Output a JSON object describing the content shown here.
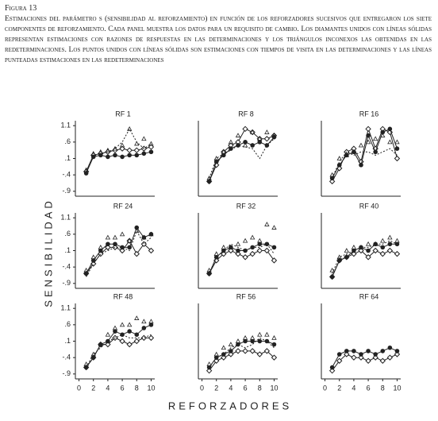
{
  "caption": {
    "label": "Figura 13",
    "text": "Estimaciones del parámetro s (sensibilidad al reforzamiento) en función de los reforzadores sucesivos que entregaron los siete componentes de reforzamiento. Cada panel muestra los datos para un requisito de cambio. Los diamantes unidos con líneas sólidas representan estimaciones con razones de respuestas en las determinaciones y los triángulos inconexos las obtenidas en las redeterminaciones. Los puntos unidos con líneas sólidas son estimaciones con tiempos de visita en las determinaciones y las líneas punteadas estimaciones en las redeterminaciones"
  },
  "xlabel": "REFORZADORES",
  "ylabel": "SENSIBILIDAD",
  "chart_data": [
    {
      "type": "line",
      "title": "RF 1",
      "x": [
        1,
        2,
        3,
        4,
        5,
        6,
        7,
        8,
        9,
        10
      ],
      "xlim": [
        -0.5,
        10.5
      ],
      "ylim": [
        -1.05,
        1.25
      ],
      "yticks": [
        {
          "value": -0.9,
          "label": "-.9"
        },
        {
          "value": -0.4,
          "label": "-.4"
        },
        {
          "value": 0.1,
          "label": ".1"
        },
        {
          "value": 0.6,
          "label": ".6"
        },
        1.1
      ],
      "series": [
        {
          "marker": "diamond",
          "dash": false,
          "color": "#222",
          "values": [
            -0.3,
            0.2,
            0.25,
            0.3,
            0.35,
            0.4,
            0.35,
            0.35,
            0.4,
            0.45
          ]
        },
        {
          "marker": "circle",
          "dash": false,
          "color": "#222",
          "values": [
            -0.35,
            0.15,
            0.2,
            0.15,
            0.2,
            0.15,
            0.2,
            0.2,
            0.25,
            0.3
          ]
        },
        {
          "marker": "none",
          "dash": true,
          "color": "#222",
          "values": [
            -0.3,
            0.2,
            0.25,
            0.3,
            0.4,
            0.6,
            1.0,
            0.6,
            0.4,
            0.55
          ]
        },
        {
          "marker": "triangle",
          "line": false,
          "color": "#222",
          "values": [
            -0.25,
            0.25,
            0.3,
            0.35,
            0.4,
            0.5,
            1.0,
            0.55,
            0.7,
            0.55
          ]
        }
      ]
    },
    {
      "type": "line",
      "title": "RF 8",
      "x": [
        1,
        2,
        3,
        4,
        5,
        6,
        7,
        8,
        9,
        10
      ],
      "xlim": [
        -0.5,
        10.5
      ],
      "ylim": [
        -1.05,
        1.25
      ],
      "series": [
        {
          "marker": "diamond",
          "dash": false,
          "color": "#222",
          "values": [
            -0.6,
            -0.1,
            0.3,
            0.5,
            0.6,
            1.0,
            0.9,
            0.7,
            0.7,
            0.8
          ]
        },
        {
          "marker": "circle",
          "dash": false,
          "color": "#222",
          "values": [
            -0.6,
            0.0,
            0.2,
            0.4,
            0.5,
            0.6,
            0.5,
            0.6,
            0.5,
            0.75
          ]
        },
        {
          "marker": "none",
          "dash": true,
          "color": "#222",
          "values": [
            -0.5,
            0.1,
            0.25,
            0.35,
            0.5,
            0.45,
            0.4,
            0.1,
            0.5,
            0.7
          ]
        },
        {
          "marker": "triangle",
          "line": false,
          "color": "#222",
          "values": [
            -0.5,
            0.1,
            0.3,
            0.6,
            0.8,
            0.5,
            0.9,
            0.7,
            0.9,
            0.8
          ]
        }
      ]
    },
    {
      "type": "line",
      "title": "RF 16",
      "x": [
        1,
        2,
        3,
        4,
        5,
        6,
        7,
        8,
        9,
        10
      ],
      "xlim": [
        -0.5,
        10.5
      ],
      "ylim": [
        -1.05,
        1.25
      ],
      "series": [
        {
          "marker": "diamond",
          "dash": false,
          "color": "#222",
          "values": [
            -0.6,
            -0.2,
            0.3,
            0.4,
            0.0,
            1.0,
            0.4,
            1.0,
            0.9,
            0.1
          ]
        },
        {
          "marker": "circle",
          "dash": false,
          "color": "#222",
          "values": [
            -0.5,
            -0.1,
            0.2,
            0.3,
            -0.1,
            0.8,
            0.3,
            0.9,
            1.0,
            0.4
          ]
        },
        {
          "marker": "none",
          "dash": true,
          "color": "#222",
          "values": [
            -0.5,
            0.0,
            0.3,
            0.2,
            0.3,
            0.3,
            0.2,
            0.3,
            0.4,
            0.2
          ]
        },
        {
          "marker": "triangle",
          "line": false,
          "color": "#222",
          "values": [
            -0.4,
            0.1,
            0.2,
            0.3,
            0.5,
            0.6,
            0.7,
            0.8,
            0.6,
            0.6
          ]
        }
      ]
    },
    {
      "type": "line",
      "title": "RF 24",
      "x": [
        1,
        2,
        3,
        4,
        5,
        6,
        7,
        8,
        9,
        10
      ],
      "xlim": [
        -0.5,
        10.5
      ],
      "ylim": [
        -1.05,
        1.25
      ],
      "yticks": [
        {
          "value": -0.9,
          "label": "-.9"
        },
        {
          "value": -0.4,
          "label": "-.4"
        },
        {
          "value": 0.1,
          "label": ".1"
        },
        {
          "value": 0.6,
          "label": ".6"
        },
        1.1
      ],
      "series": [
        {
          "marker": "diamond",
          "dash": false,
          "color": "#222",
          "values": [
            -0.6,
            -0.3,
            0.0,
            0.2,
            0.2,
            0.1,
            0.4,
            0.0,
            0.3,
            0.1
          ]
        },
        {
          "marker": "circle",
          "dash": false,
          "color": "#222",
          "values": [
            -0.6,
            -0.2,
            0.1,
            0.3,
            0.3,
            0.2,
            0.2,
            0.8,
            0.5,
            0.6
          ]
        },
        {
          "marker": "none",
          "dash": true,
          "color": "#222",
          "values": [
            -0.7,
            -0.3,
            0.0,
            0.1,
            0.2,
            0.2,
            0.1,
            0.7,
            0.3,
            0.5
          ]
        },
        {
          "marker": "triangle",
          "line": false,
          "color": "#222",
          "values": [
            -0.5,
            -0.1,
            0.2,
            0.5,
            0.5,
            0.6,
            0.4,
            0.7,
            0.5,
            0.6
          ]
        }
      ]
    },
    {
      "type": "line",
      "title": "RF 32",
      "x": [
        1,
        2,
        3,
        4,
        5,
        6,
        7,
        8,
        9,
        10
      ],
      "xlim": [
        -0.5,
        10.5
      ],
      "ylim": [
        -1.05,
        1.25
      ],
      "series": [
        {
          "marker": "diamond",
          "dash": false,
          "color": "#222",
          "values": [
            -0.6,
            -0.2,
            0.0,
            0.1,
            0.0,
            -0.1,
            0.0,
            0.1,
            0.1,
            -0.2
          ]
        },
        {
          "marker": "circle",
          "dash": false,
          "color": "#222",
          "values": [
            -0.6,
            -0.1,
            0.1,
            0.2,
            0.1,
            0.1,
            0.2,
            0.3,
            0.3,
            0.2
          ]
        },
        {
          "marker": "none",
          "dash": true,
          "color": "#222",
          "values": [
            -0.6,
            -0.1,
            0.1,
            0.3,
            0.2,
            0.1,
            0.2,
            0.2,
            0.3,
            0.0
          ]
        },
        {
          "marker": "triangle",
          "line": false,
          "color": "#222",
          "values": [
            -0.5,
            0.0,
            0.2,
            0.2,
            0.3,
            0.4,
            0.5,
            0.4,
            0.9,
            0.8
          ]
        }
      ]
    },
    {
      "type": "line",
      "title": "RF 40",
      "x": [
        1,
        2,
        3,
        4,
        5,
        6,
        7,
        8,
        9,
        10
      ],
      "xlim": [
        -0.5,
        10.5
      ],
      "ylim": [
        -1.05,
        1.25
      ],
      "series": [
        {
          "marker": "diamond",
          "dash": false,
          "color": "#222",
          "values": [
            -0.7,
            -0.2,
            -0.1,
            0.0,
            0.1,
            -0.1,
            0.1,
            0.0,
            0.1,
            0.0
          ]
        },
        {
          "marker": "circle",
          "dash": false,
          "color": "#222",
          "values": [
            -0.7,
            -0.2,
            -0.1,
            0.1,
            0.2,
            0.1,
            0.3,
            0.2,
            0.3,
            0.3
          ]
        },
        {
          "marker": "none",
          "dash": true,
          "color": "#222",
          "values": [
            -0.6,
            -0.1,
            0.0,
            0.1,
            0.2,
            0.2,
            0.3,
            0.3,
            0.4,
            0.3
          ]
        },
        {
          "marker": "triangle",
          "line": false,
          "color": "#222",
          "values": [
            -0.5,
            -0.1,
            0.1,
            0.2,
            0.2,
            0.3,
            0.3,
            0.4,
            0.5,
            0.4
          ]
        }
      ]
    },
    {
      "type": "line",
      "title": "RF 48",
      "x": [
        1,
        2,
        3,
        4,
        5,
        6,
        7,
        8,
        9,
        10
      ],
      "xlim": [
        -0.5,
        10.5
      ],
      "ylim": [
        -1.05,
        1.25
      ],
      "yticks": [
        {
          "value": -0.9,
          "label": "-.9"
        },
        {
          "value": -0.4,
          "label": "-.4"
        },
        {
          "value": 0.1,
          "label": ".1"
        },
        {
          "value": 0.6,
          "label": ".6"
        },
        1.1
      ],
      "xticks": [
        0,
        2,
        4,
        6,
        8,
        10
      ],
      "series": [
        {
          "marker": "diamond",
          "dash": false,
          "color": "#222",
          "values": [
            -0.7,
            -0.4,
            0.0,
            0.0,
            0.2,
            0.1,
            0.0,
            0.1,
            0.2,
            0.2
          ]
        },
        {
          "marker": "circle",
          "dash": false,
          "color": "#222",
          "values": [
            -0.7,
            -0.4,
            0.0,
            0.1,
            0.4,
            0.3,
            0.4,
            0.3,
            0.5,
            0.6
          ]
        },
        {
          "marker": "none",
          "dash": true,
          "color": "#222",
          "values": [
            -0.7,
            -0.3,
            -0.1,
            0.1,
            0.2,
            0.3,
            0.2,
            0.2,
            0.2,
            0.3
          ]
        },
        {
          "marker": "triangle",
          "line": false,
          "color": "#222",
          "values": [
            -0.6,
            -0.3,
            0.0,
            0.3,
            0.5,
            0.6,
            0.6,
            0.8,
            0.7,
            0.7
          ]
        }
      ]
    },
    {
      "type": "line",
      "title": "RF 56",
      "x": [
        1,
        2,
        3,
        4,
        5,
        6,
        7,
        8,
        9,
        10
      ],
      "xlim": [
        -0.5,
        10.5
      ],
      "ylim": [
        -1.05,
        1.25
      ],
      "xticks": [
        0,
        2,
        4,
        6,
        8,
        10
      ],
      "series": [
        {
          "marker": "diamond",
          "dash": false,
          "color": "#222",
          "values": [
            -0.8,
            -0.5,
            -0.4,
            -0.3,
            -0.2,
            -0.2,
            -0.2,
            -0.3,
            -0.2,
            -0.4
          ]
        },
        {
          "marker": "circle",
          "dash": false,
          "color": "#222",
          "values": [
            -0.7,
            -0.4,
            -0.3,
            -0.2,
            0.0,
            0.1,
            0.1,
            0.1,
            0.1,
            0.0
          ]
        },
        {
          "marker": "none",
          "dash": true,
          "color": "#222",
          "values": [
            -0.7,
            -0.4,
            -0.3,
            -0.1,
            0.0,
            -0.1,
            0.0,
            0.2,
            0.1,
            -0.1
          ]
        },
        {
          "marker": "triangle",
          "line": false,
          "color": "#222",
          "values": [
            -0.6,
            -0.3,
            -0.1,
            0.0,
            0.1,
            0.2,
            0.2,
            0.3,
            0.3,
            0.2
          ]
        }
      ]
    },
    {
      "type": "line",
      "title": "RF 64",
      "x": [
        1,
        2,
        3,
        4,
        5,
        6,
        7,
        8,
        9,
        10
      ],
      "xlim": [
        -0.5,
        10.5
      ],
      "ylim": [
        -1.05,
        1.25
      ],
      "xticks": [
        0,
        2,
        4,
        6,
        8,
        10
      ],
      "series": [
        {
          "marker": "diamond",
          "dash": false,
          "color": "#222",
          "values": [
            -0.8,
            -0.5,
            -0.3,
            -0.4,
            -0.4,
            -0.5,
            -0.4,
            -0.5,
            -0.4,
            -0.3
          ]
        },
        {
          "marker": "circle",
          "dash": false,
          "color": "#222",
          "values": [
            -0.7,
            -0.3,
            -0.2,
            -0.2,
            -0.3,
            -0.2,
            -0.3,
            -0.2,
            -0.1,
            -0.2
          ]
        }
      ]
    }
  ]
}
